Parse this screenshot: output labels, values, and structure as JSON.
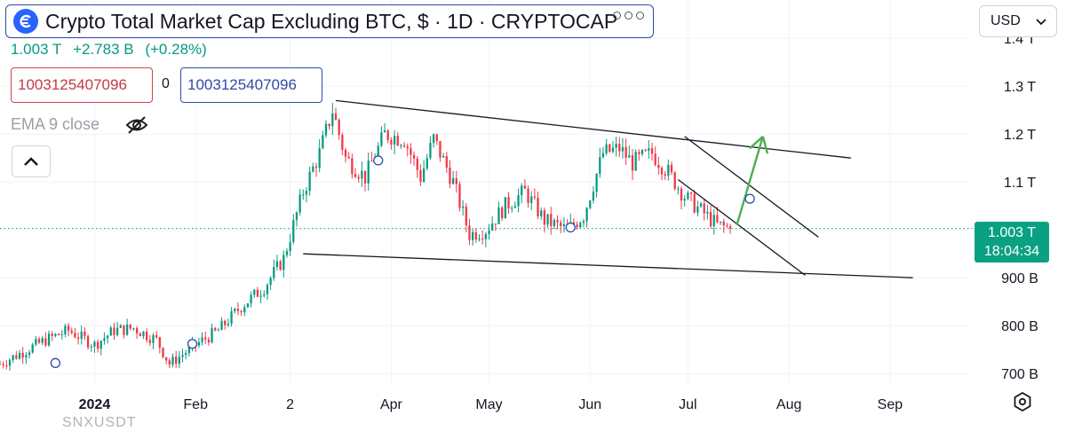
{
  "header": {
    "title": "Crypto Total Market Cap Excluding BTC, $ · 1D · CRYPTOCAP",
    "last_value": "1.003 T",
    "change": "+2.783 B",
    "change_pct": "(+0.28%)",
    "bid": "1003125407096",
    "spread": "0",
    "ask": "1003125407096",
    "indicator": "EMA 9 close",
    "currency": "USD"
  },
  "price_label": {
    "value": "1.003 T",
    "countdown": "18:04:34"
  },
  "watermark": "SNXUSDT",
  "colors": {
    "up": "#089981",
    "down": "#f23645",
    "trend": "#131722",
    "arrow": "#4caf50",
    "title_border": "#2f4aa8",
    "price_tag": "#0aa182"
  },
  "icons": {
    "logo": "cryptocap-logo-icon",
    "eye": "eye-hidden-icon",
    "collapse": "chevron-up-icon",
    "currency": "chevron-down-icon",
    "settings": "settings-hexagon-icon"
  },
  "chart_data": {
    "type": "candlestick",
    "x_unit": "date",
    "x_range": [
      "2023-12-03",
      "2024-09-25"
    ],
    "y_range": [
      680,
      1480
    ],
    "y_unit": "B USD",
    "y_ticks": [
      {
        "v": 700,
        "label": "700 B"
      },
      {
        "v": 800,
        "label": "800 B"
      },
      {
        "v": 900,
        "label": "900 B"
      },
      {
        "v": 1000,
        "label": "1.0 T"
      },
      {
        "v": 1100,
        "label": "1.1 T"
      },
      {
        "v": 1200,
        "label": "1.2 T"
      },
      {
        "v": 1300,
        "label": "1.3 T"
      },
      {
        "v": 1400,
        "label": "1.4 T"
      }
    ],
    "x_ticks": [
      {
        "date": "2024-01-01",
        "label": "2024",
        "bold": true
      },
      {
        "date": "2024-02-01",
        "label": "Feb"
      },
      {
        "date": "2024-03-01",
        "label": "2"
      },
      {
        "date": "2024-04-01",
        "label": "Apr"
      },
      {
        "date": "2024-05-01",
        "label": "May"
      },
      {
        "date": "2024-06-01",
        "label": "Jun"
      },
      {
        "date": "2024-07-01",
        "label": "Jul"
      },
      {
        "date": "2024-08-01",
        "label": "Aug"
      },
      {
        "date": "2024-09-01",
        "label": "Sep"
      }
    ],
    "last_price": 1003,
    "price_path": [
      [
        "2023-12-03",
        720
      ],
      [
        "2023-12-10",
        745
      ],
      [
        "2023-12-17",
        770
      ],
      [
        "2023-12-24",
        790
      ],
      [
        "2024-01-01",
        760
      ],
      [
        "2024-01-07",
        790
      ],
      [
        "2024-01-13",
        795
      ],
      [
        "2024-01-20",
        770
      ],
      [
        "2024-01-24",
        720
      ],
      [
        "2024-02-01",
        760
      ],
      [
        "2024-02-08",
        790
      ],
      [
        "2024-02-15",
        840
      ],
      [
        "2024-02-22",
        880
      ],
      [
        "2024-02-28",
        940
      ],
      [
        "2024-03-05",
        1080
      ],
      [
        "2024-03-10",
        1160
      ],
      [
        "2024-03-14",
        1250
      ],
      [
        "2024-03-18",
        1150
      ],
      [
        "2024-03-24",
        1110
      ],
      [
        "2024-03-30",
        1200
      ],
      [
        "2024-04-05",
        1190
      ],
      [
        "2024-04-10",
        1110
      ],
      [
        "2024-04-14",
        1190
      ],
      [
        "2024-04-20",
        1100
      ],
      [
        "2024-04-25",
        990
      ],
      [
        "2024-04-30",
        1000
      ],
      [
        "2024-05-06",
        1050
      ],
      [
        "2024-05-12",
        1080
      ],
      [
        "2024-05-18",
        1020
      ],
      [
        "2024-05-25",
        1000
      ],
      [
        "2024-05-30",
        1030
      ],
      [
        "2024-06-05",
        1160
      ],
      [
        "2024-06-10",
        1170
      ],
      [
        "2024-06-14",
        1140
      ],
      [
        "2024-06-20",
        1160
      ],
      [
        "2024-06-25",
        1120
      ],
      [
        "2024-06-30",
        1070
      ],
      [
        "2024-07-05",
        1040
      ],
      [
        "2024-07-10",
        1010
      ],
      [
        "2024-07-14",
        1003
      ]
    ],
    "trendlines": [
      {
        "from": [
          "2024-03-15",
          1270
        ],
        "to": [
          "2024-08-20",
          1150
        ]
      },
      {
        "from": [
          "2024-03-05",
          950
        ],
        "to": [
          "2024-09-08",
          900
        ]
      },
      {
        "from": [
          "2024-06-30",
          1195
        ],
        "to": [
          "2024-08-10",
          985
        ]
      },
      {
        "from": [
          "2024-06-28",
          1105
        ],
        "to": [
          "2024-08-06",
          905
        ]
      }
    ],
    "arrow": {
      "from": [
        "2024-07-16",
        1010
      ],
      "to": [
        "2024-07-24",
        1195
      ]
    },
    "markers": [
      {
        "date": "2023-12-20",
        "value": 722
      },
      {
        "date": "2024-01-31",
        "value": 762
      },
      {
        "date": "2024-03-28",
        "value": 1145
      },
      {
        "date": "2024-05-26",
        "value": 1005
      },
      {
        "date": "2024-07-20",
        "value": 1065
      }
    ]
  }
}
